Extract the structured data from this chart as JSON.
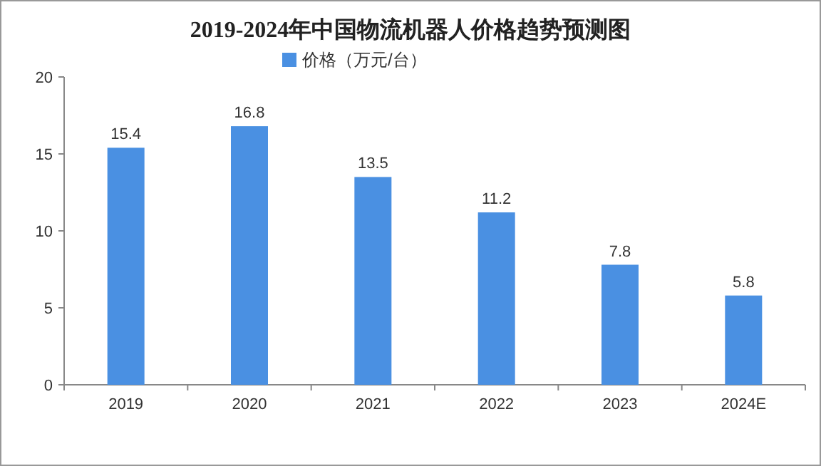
{
  "chart_data": {
    "type": "bar",
    "title": "2019-2024年中国物流机器人价格趋势预测图",
    "categories": [
      "2019",
      "2020",
      "2021",
      "2022",
      "2023",
      "2024E"
    ],
    "series": [
      {
        "name": "价格（万元/台）",
        "color": "#4a90e2",
        "values": [
          15.4,
          16.8,
          13.5,
          11.2,
          7.8,
          5.8
        ]
      }
    ],
    "ylim": [
      0,
      20
    ],
    "yticks": [
      0,
      5,
      10,
      15,
      20
    ],
    "data_labels": true,
    "legend": "top",
    "grid": false
  }
}
